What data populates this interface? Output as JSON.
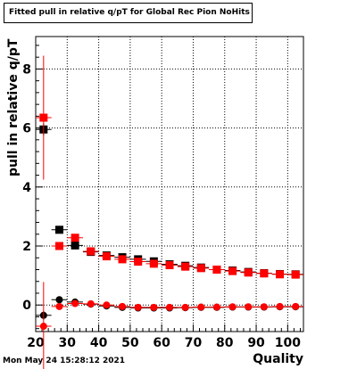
{
  "chart_data": {
    "type": "scatter",
    "title": "Fitted pull in relative q/pT for Global Rec Pion NoHits",
    "xlabel": "Quality",
    "ylabel": "pull in relative q/pT",
    "xlim": [
      20,
      105
    ],
    "ylim": [
      -0.9,
      9.1
    ],
    "x_ticks": [
      20,
      30,
      40,
      50,
      60,
      70,
      80,
      90,
      100
    ],
    "y_ticks": [
      0,
      2,
      4,
      6,
      8
    ],
    "grid": true,
    "legend": "none",
    "x": [
      22.5,
      27.5,
      32.5,
      37.5,
      42.5,
      47.5,
      52.5,
      57.5,
      62.5,
      67.5,
      72.5,
      77.5,
      82.5,
      87.5,
      92.5,
      97.5,
      102.5
    ],
    "series": [
      {
        "color": "#000000",
        "marker": "square",
        "values": [
          5.95,
          2.55,
          2.02,
          1.8,
          1.68,
          1.62,
          1.55,
          1.48,
          1.38,
          1.33,
          1.27,
          1.2,
          1.17,
          1.12,
          1.08,
          1.05,
          1.04
        ],
        "yerr": [
          0.2,
          0.12,
          0.07,
          0.05,
          0.04,
          0.04,
          0.03,
          0.03,
          0.03,
          0.03,
          0.03,
          0.03,
          0.03,
          0.03,
          0.03,
          0.03,
          0.03
        ]
      },
      {
        "color": "#ff0000",
        "marker": "square",
        "values": [
          6.35,
          2.0,
          2.28,
          1.82,
          1.65,
          1.55,
          1.47,
          1.4,
          1.35,
          1.3,
          1.25,
          1.2,
          1.15,
          1.1,
          1.07,
          1.04,
          1.03
        ],
        "yerr": [
          2.1,
          0.1,
          0.08,
          0.05,
          0.04,
          0.04,
          0.03,
          0.03,
          0.03,
          0.03,
          0.03,
          0.03,
          0.03,
          0.03,
          0.03,
          0.03,
          0.03
        ]
      },
      {
        "color": "#000000",
        "marker": "circle",
        "values": [
          -0.35,
          0.18,
          0.1,
          0.03,
          -0.03,
          -0.08,
          -0.1,
          -0.1,
          -0.1,
          -0.09,
          -0.08,
          -0.08,
          -0.07,
          -0.07,
          -0.07,
          -0.06,
          -0.06
        ],
        "yerr": [
          0.15,
          0.06,
          0.04,
          0.03,
          0.03,
          0.02,
          0.02,
          0.02,
          0.02,
          0.02,
          0.02,
          0.02,
          0.02,
          0.02,
          0.02,
          0.02,
          0.02
        ]
      },
      {
        "color": "#ff0000",
        "marker": "circle",
        "values": [
          -0.72,
          -0.05,
          0.05,
          0.04,
          0.0,
          -0.05,
          -0.08,
          -0.08,
          -0.08,
          -0.08,
          -0.07,
          -0.07,
          -0.06,
          -0.06,
          -0.06,
          -0.05,
          -0.05
        ],
        "yerr": [
          1.5,
          0.06,
          0.04,
          0.03,
          0.03,
          0.02,
          0.02,
          0.02,
          0.02,
          0.02,
          0.02,
          0.02,
          0.02,
          0.02,
          0.02,
          0.02,
          0.02
        ]
      }
    ]
  },
  "footer": {
    "timestamp": "Mon May 24 15:28:12 2021"
  }
}
